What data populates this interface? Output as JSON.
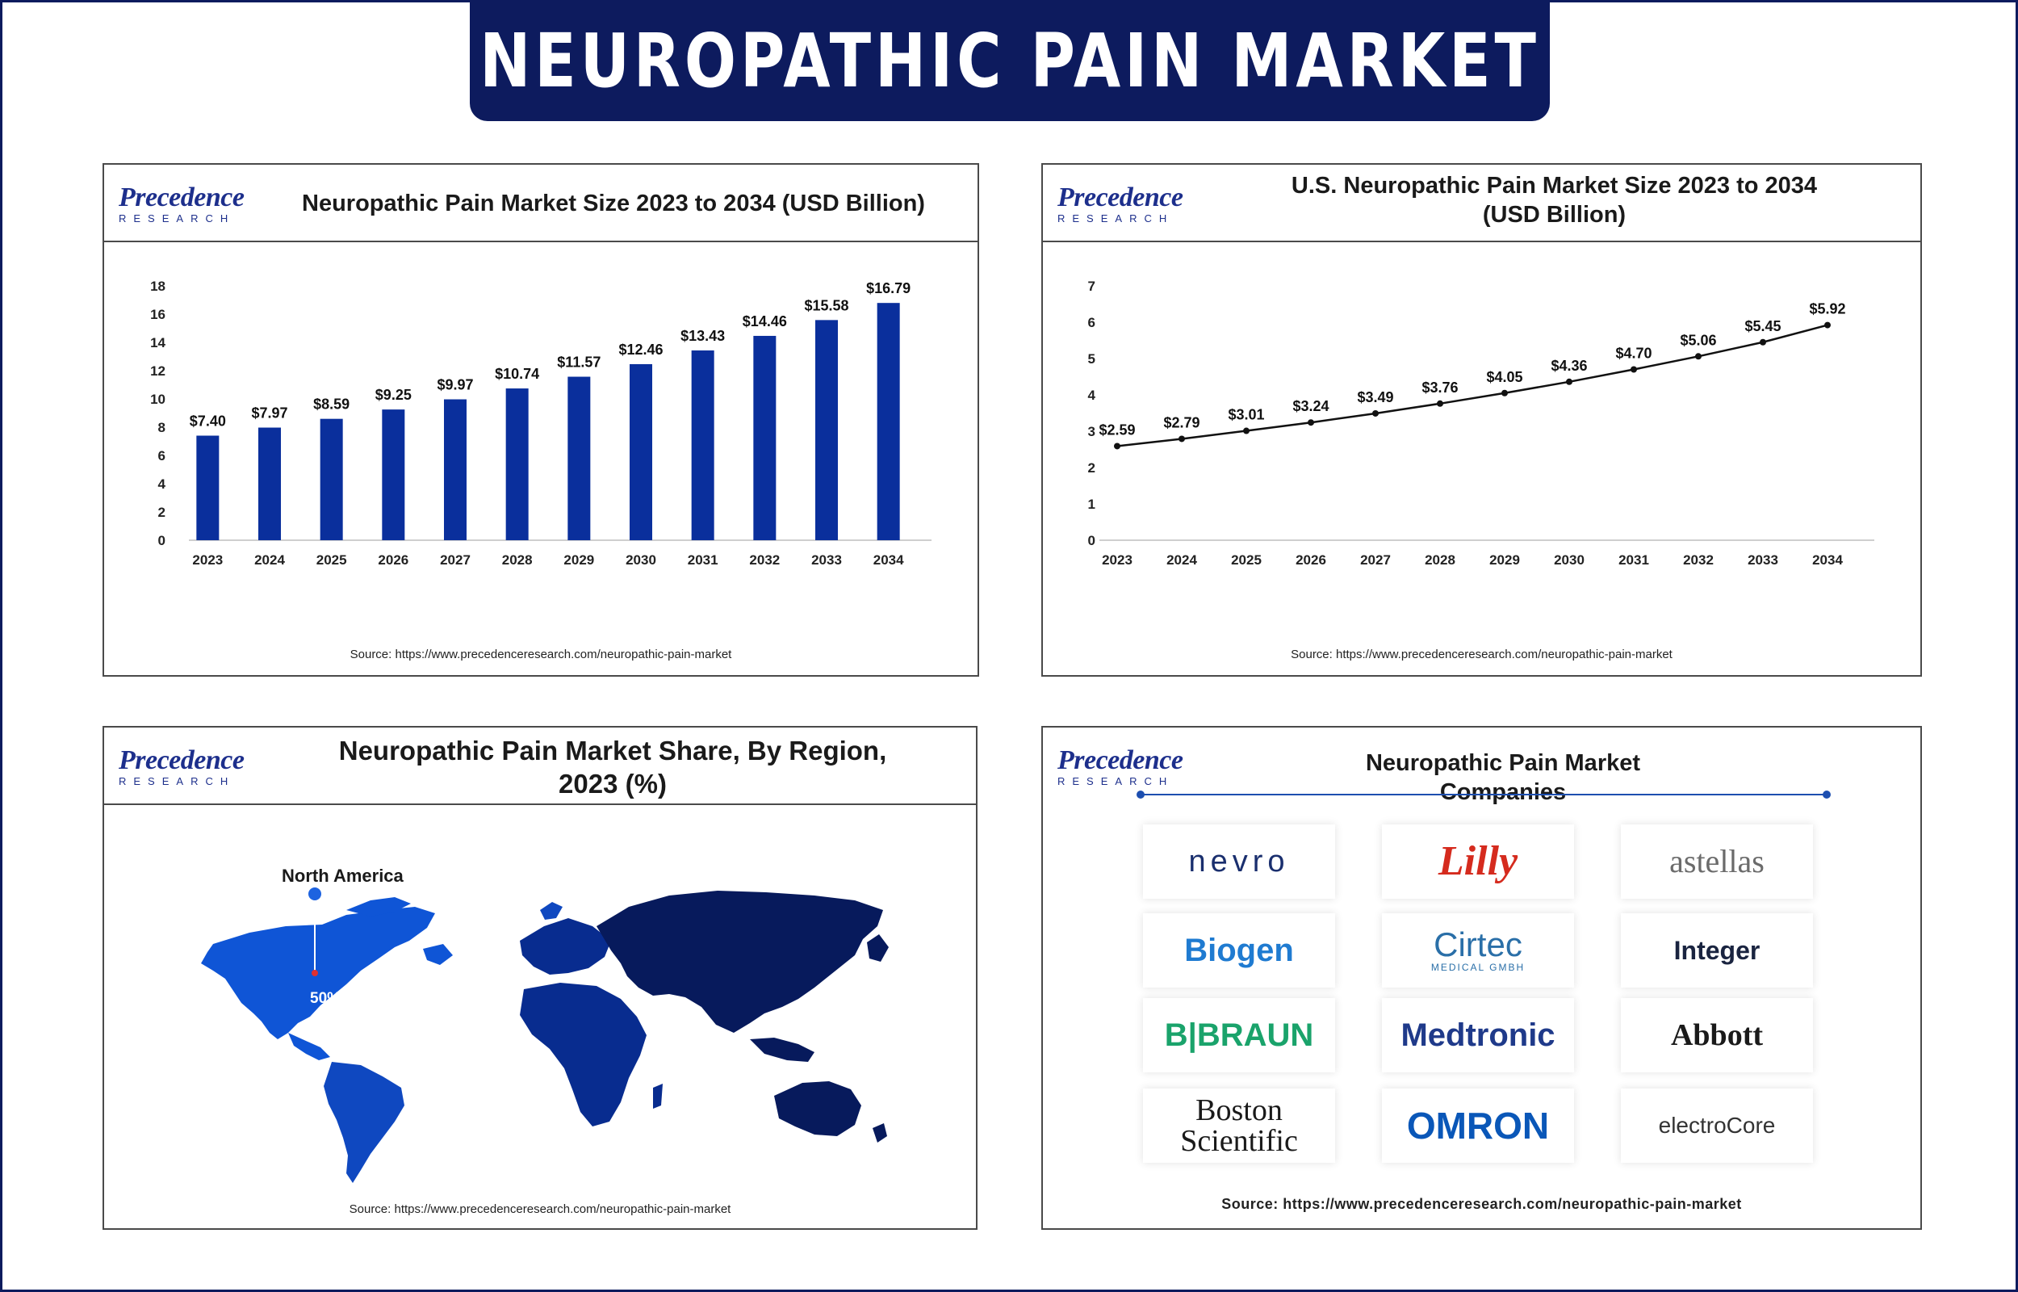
{
  "header": {
    "title": "NEUROPATHIC PAIN MARKET"
  },
  "brand": {
    "logo_main": "Precedence",
    "logo_sub": "RESEARCH",
    "navy": "#0d1b5e",
    "bar_color": "#0a2f9c"
  },
  "panels": {
    "global": {
      "title": "Neuropathic Pain Market Size 2023 to 2034 (USD Billion)",
      "source": "Source: https://www.precedenceresearch.com/neuropathic-pain-market"
    },
    "us": {
      "title_line1": "U.S. Neuropathic Pain Market Size 2023 to 2034",
      "title_line2": "(USD Billion)",
      "source": "Source: https://www.precedenceresearch.com/neuropathic-pain-market"
    },
    "region": {
      "title_line1": "Neuropathic Pain Market Share, By Region,",
      "title_line2": "2023 (%)",
      "region_name": "North America",
      "region_share": "50%",
      "source": "Source: https://www.precedenceresearch.com/neuropathic-pain-market"
    },
    "companies": {
      "title": "Neuropathic Pain Market Companies",
      "source": "Source: https://www.precedenceresearch.com/neuropathic-pain-market",
      "items": [
        {
          "name": "nevro",
          "color": "#1a2f6e"
        },
        {
          "name": "Lilly",
          "color": "#d52b1e"
        },
        {
          "name": "astellas",
          "color": "#6b6b6b"
        },
        {
          "name": "Biogen",
          "color": "#1f7bd1"
        },
        {
          "name": "Cirtec",
          "sub": "MEDICAL GMBH",
          "color": "#2a6fa8"
        },
        {
          "name": "Integer",
          "color": "#1a2440"
        },
        {
          "name": "B|BRAUN",
          "color": "#1aa36b"
        },
        {
          "name": "Medtronic",
          "color": "#1f3a8a"
        },
        {
          "name": "Abbott",
          "color": "#1a1a1a"
        },
        {
          "name": "Boston",
          "name2": "Scientific",
          "color": "#1a1a1a"
        },
        {
          "name": "OMRON",
          "color": "#0a57b8"
        },
        {
          "name": "electroCore",
          "color": "#333333"
        }
      ]
    }
  },
  "chart_data": [
    {
      "type": "bar",
      "title": "Neuropathic Pain Market Size 2023 to 2034 (USD Billion)",
      "categories": [
        "2023",
        "2024",
        "2025",
        "2026",
        "2027",
        "2028",
        "2029",
        "2030",
        "2031",
        "2032",
        "2033",
        "2034"
      ],
      "values": [
        7.4,
        7.97,
        8.59,
        9.25,
        9.97,
        10.74,
        11.57,
        12.46,
        13.43,
        14.46,
        15.58,
        16.79
      ],
      "labels": [
        "$7.40",
        "$7.97",
        "$8.59",
        "$9.25",
        "$9.97",
        "$10.74",
        "$11.57",
        "$12.46",
        "$13.43",
        "$14.46",
        "$15.58",
        "$16.79"
      ],
      "yticks": [
        "0",
        "2",
        "4",
        "6",
        "8",
        "10",
        "12",
        "14",
        "16",
        "18"
      ],
      "ylim": [
        0,
        18
      ]
    },
    {
      "type": "line",
      "title": "U.S. Neuropathic Pain Market Size 2023 to 2034 (USD Billion)",
      "categories": [
        "2023",
        "2024",
        "2025",
        "2026",
        "2027",
        "2028",
        "2029",
        "2030",
        "2031",
        "2032",
        "2033",
        "2034"
      ],
      "values": [
        2.59,
        2.79,
        3.01,
        3.24,
        3.49,
        3.76,
        4.05,
        4.36,
        4.7,
        5.06,
        5.45,
        5.92
      ],
      "labels": [
        "$2.59",
        "$2.79",
        "$3.01",
        "$3.24",
        "$3.49",
        "$3.76",
        "$4.05",
        "$4.36",
        "$4.70",
        "$5.06",
        "$5.45",
        "$5.92"
      ],
      "yticks": [
        "0",
        "1",
        "2",
        "3",
        "4",
        "5",
        "6",
        "7"
      ],
      "ylim": [
        0,
        7
      ]
    }
  ]
}
